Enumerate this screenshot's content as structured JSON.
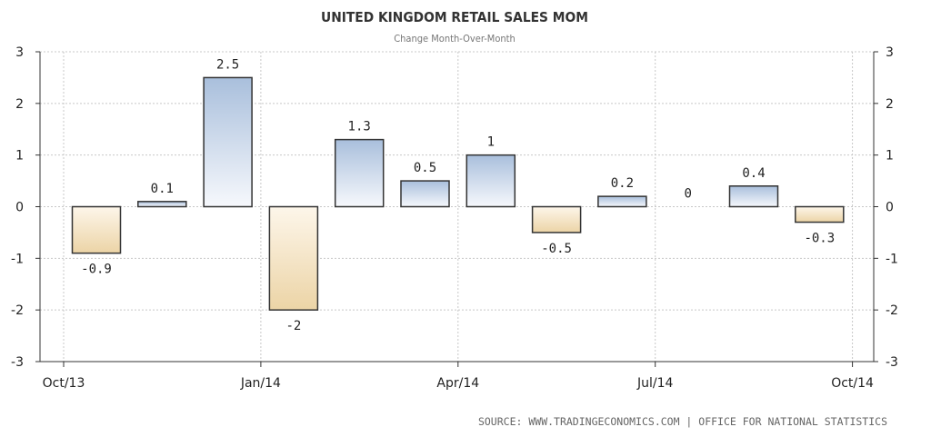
{
  "chart_data": {
    "type": "bar",
    "title": "UNITED KINGDOM RETAIL SALES MOM",
    "subtitle": "Change Month-Over-Month",
    "source": "SOURCE: WWW.TRADINGECONOMICS.COM | OFFICE FOR NATIONAL STATISTICS",
    "categories": [
      "Oct/13",
      "Nov/13",
      "Dec/13",
      "Jan/14",
      "Feb/14",
      "Mar/14",
      "Apr/14",
      "May/14",
      "Jun/14",
      "Jul/14",
      "Aug/14",
      "Sep/14"
    ],
    "values": [
      -0.9,
      0.1,
      2.5,
      -2,
      1.3,
      0.5,
      1,
      -0.5,
      0.2,
      0,
      0.4,
      -0.3
    ],
    "data_labels": [
      "-0.9",
      "0.1",
      "2.5",
      "-2",
      "1.3",
      "0.5",
      "1",
      "-0.5",
      "0.2",
      "0",
      "0.4",
      "-0.3"
    ],
    "x_ticks": [
      "Oct/13",
      "Jan/14",
      "Apr/14",
      "Jul/14",
      "Oct/14"
    ],
    "y_ticks": [
      "3",
      "2",
      "1",
      "0",
      "-1",
      "-2",
      "-3"
    ],
    "ylim": [
      -3,
      3
    ],
    "grid": true,
    "colors": {
      "positive_top": "#a9bfdc",
      "positive_bottom": "#f6f8fc",
      "negative_top": "#fdf6ea",
      "negative_bottom": "#ecd4a6",
      "bar_stroke": "#333333",
      "grid": "#c8c8c8"
    }
  }
}
